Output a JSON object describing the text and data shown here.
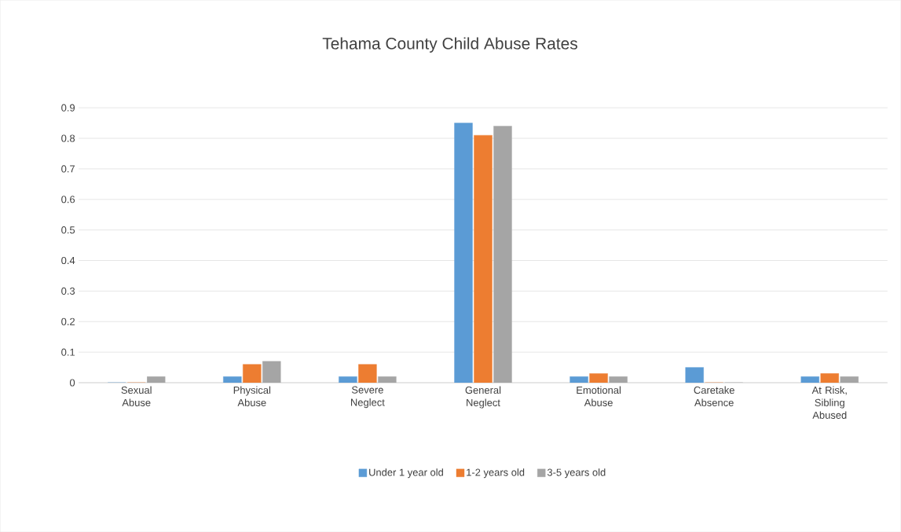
{
  "chart_data": {
    "type": "bar",
    "title": "Tehama County Child Abuse Rates",
    "categories": [
      "Sexual Abuse",
      "Physical Abuse",
      "Severe Neglect",
      "General Neglect",
      "Emotional Abuse",
      "Caretake Absence",
      "At Risk, Sibling Abused"
    ],
    "series": [
      {
        "name": "Under 1 year old",
        "color": "#5b9bd5",
        "values": [
          0,
          0.02,
          0.02,
          0.85,
          0.02,
          0.05,
          0.02
        ]
      },
      {
        "name": "1-2 years old",
        "color": "#ed7d31",
        "values": [
          0,
          0.06,
          0.06,
          0.81,
          0.03,
          0,
          0.03
        ]
      },
      {
        "name": "3-5 years old",
        "color": "#a5a5a5",
        "values": [
          0.02,
          0.07,
          0.02,
          0.84,
          0.02,
          0,
          0.02
        ]
      }
    ],
    "ylim": [
      0,
      0.9
    ],
    "yticks": [
      0,
      0.1,
      0.2,
      0.3,
      0.4,
      0.5,
      0.6,
      0.7,
      0.8,
      0.9
    ],
    "grid": "y",
    "legend": "bottom"
  }
}
